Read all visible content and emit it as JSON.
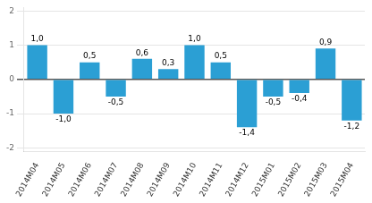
{
  "chart_data": {
    "type": "bar",
    "categories": [
      "2014M04",
      "2014M05",
      "2014M06",
      "2014M07",
      "2014M08",
      "2014M09",
      "2014M10",
      "2014M11",
      "2014M12",
      "2015M01",
      "2015M02",
      "2015M03",
      "2015M04"
    ],
    "values": [
      1.0,
      -1.0,
      0.5,
      -0.5,
      0.6,
      0.3,
      1.0,
      0.5,
      -1.4,
      -0.5,
      -0.4,
      0.9,
      -1.2
    ],
    "value_labels": [
      "1,0",
      "-1,0",
      "0,5",
      "-0,5",
      "0,6",
      "0,3",
      "1,0",
      "0,5",
      "-1,4",
      "-0,5",
      "-0,4",
      "0,9",
      "-1,2"
    ],
    "data_labels": true,
    "color": "#2b9fd4",
    "ylim": [
      -2.1,
      2.1
    ],
    "yticks": [
      -2,
      -1,
      0,
      1,
      2
    ],
    "grid": true
  }
}
